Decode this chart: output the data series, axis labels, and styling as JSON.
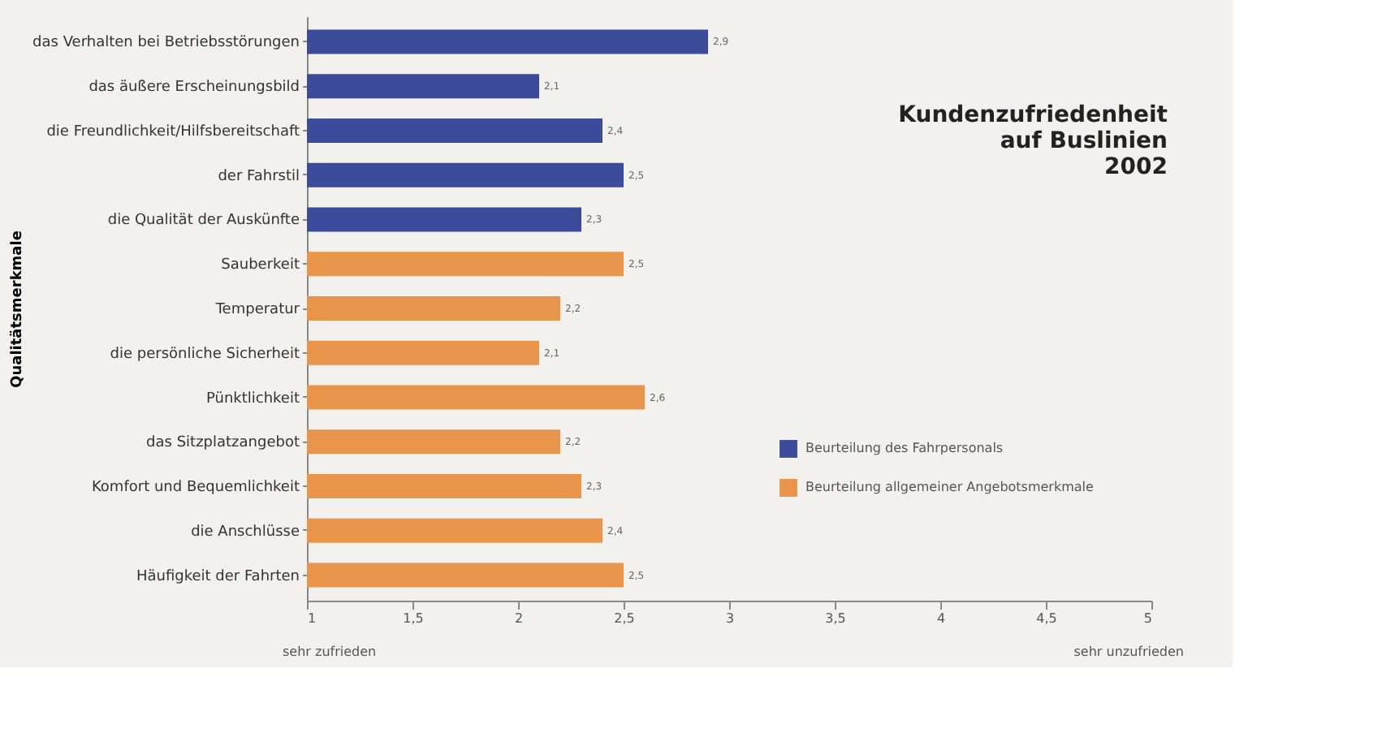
{
  "chart_data": {
    "type": "bar",
    "orientation": "horizontal",
    "title": [
      "Kundenzufriedenheit",
      "auf Buslinien",
      "2002"
    ],
    "ylabel": "Qualitätsmerkmale",
    "categories": [
      "das Verhalten bei Betriebsstörungen",
      "das äußere Erscheinungsbild",
      "die Freundlichkeit/Hilfsbereitschaft",
      "der Fahrstil",
      "die Qualität der Auskünfte",
      "Sauberkeit",
      "Temperatur",
      "die persönliche Sicherheit",
      "Pünktlichkeit",
      "das Sitzplatzangebot",
      "Komfort und Bequemlichkeit",
      "die Anschlüsse",
      "Häufigkeit der Fahrten"
    ],
    "series": [
      {
        "name": "Beurteilung des Fahrpersonals",
        "color": "#3d4b9b",
        "values": [
          2.9,
          2.1,
          2.4,
          2.5,
          2.3,
          null,
          null,
          null,
          null,
          null,
          null,
          null,
          null
        ],
        "value_labels": [
          "2,9",
          "2,1",
          "2,4",
          "2,5",
          "2,3",
          null,
          null,
          null,
          null,
          null,
          null,
          null,
          null
        ]
      },
      {
        "name": "Beurteilung allgemeiner Angebotsmerkmale",
        "color": "#e8944a",
        "values": [
          null,
          null,
          null,
          null,
          null,
          2.5,
          2.2,
          2.1,
          2.6,
          2.2,
          2.3,
          2.4,
          2.5
        ],
        "value_labels": [
          null,
          null,
          null,
          null,
          null,
          "2,5",
          "2,2",
          "2,1",
          "2,6",
          "2,2",
          "2,3",
          "2,4",
          "2,5"
        ]
      }
    ],
    "xlim": [
      1,
      5
    ],
    "xticks": [
      1,
      {
        "value": 1.5,
        "label": "1,5"
      },
      2,
      {
        "value": 2.5,
        "label": "2,5"
      },
      3,
      {
        "value": 3.5,
        "label": "3,5"
      },
      4,
      {
        "value": 4.5,
        "label": "4,5"
      },
      5
    ],
    "annotations": [
      "sehr zufrieden",
      "sehr unzufrieden"
    ],
    "legend": "bottom right",
    "grid": false
  }
}
